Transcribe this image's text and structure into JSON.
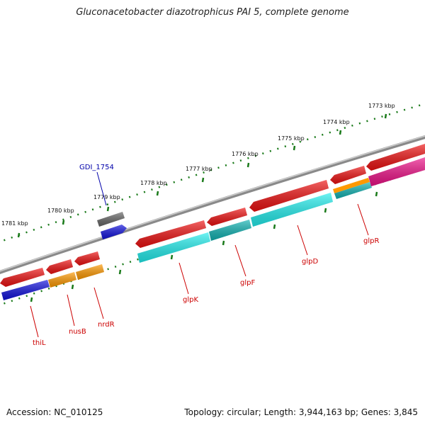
{
  "title": "Gluconacetobacter diazotrophicus PAI 5, complete genome",
  "footer": {
    "accession": "Accession: NC_010125",
    "summary": "Topology: circular; Length: 3,944,163 bp; Genes: 3,845"
  },
  "colors": {
    "backbone": "#8a8a8a",
    "ticks": "#1a7a1a",
    "gene_red": "#ee1111",
    "gene_orange": "#ff9900",
    "gene_blue": "#1111dd",
    "gene_cyan": "#22eeee",
    "gene_teal": "#11b3b3",
    "gene_magenta": "#ee1188",
    "gene_gray": "#666666",
    "label_red": "#cc0000",
    "label_blue": "#0000aa"
  },
  "kbp_labels": [
    "1773 kbp",
    "1774 kbp",
    "1775 kbp",
    "1776 kbp",
    "1777 kbp",
    "1778 kbp",
    "1779 kbp",
    "1780 kbp",
    "1781 kbp"
  ],
  "gene_labels": [
    "GDI_1754",
    "thiL",
    "nusB",
    "nrdR",
    "glpK",
    "glpF",
    "glpD",
    "glpR"
  ]
}
